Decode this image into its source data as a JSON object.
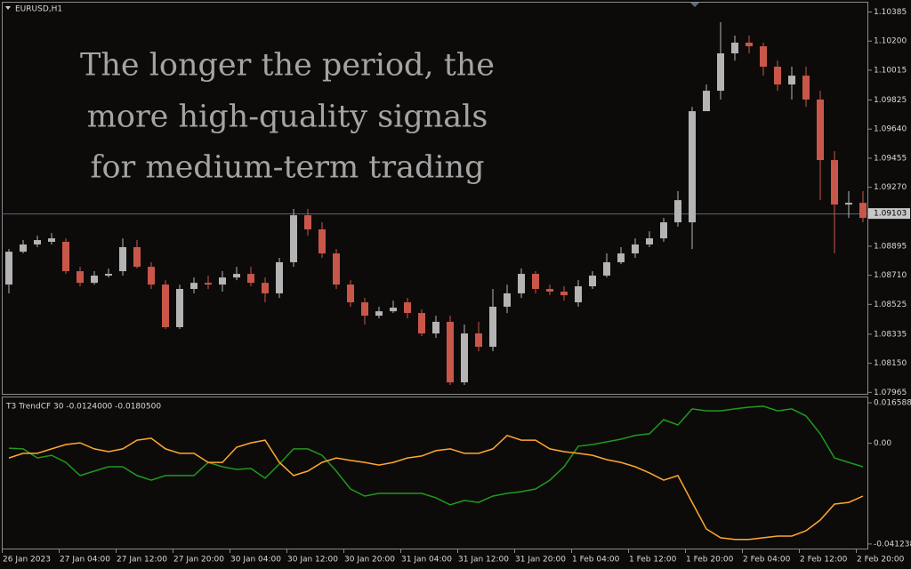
{
  "chart_data": [
    {
      "type": "candlestick",
      "title": "EURUSD,H1",
      "annotation": [
        "The longer the period, the",
        "more high-quality signals",
        "for medium-term trading"
      ],
      "categories": [
        "26 Jan 2023",
        null,
        null,
        null,
        "27 Jan 04:00",
        null,
        null,
        null,
        "27 Jan 12:00",
        null,
        null,
        null,
        "27 Jan 20:00",
        null,
        null,
        null,
        "30 Jan 04:00",
        null,
        null,
        null,
        "30 Jan 12:00",
        null,
        null,
        null,
        "30 Jan 20:00",
        null,
        null,
        null,
        "31 Jan 04:00",
        null,
        null,
        null,
        "31 Jan 12:00",
        null,
        null,
        null,
        "31 Jan 20:00",
        null,
        null,
        null,
        "1 Feb 04:00",
        null,
        null,
        null,
        "1 Feb 12:00",
        null,
        null,
        null,
        "1 Feb 20:00",
        null,
        null,
        null,
        "2 Feb 04:00",
        null,
        null,
        null,
        "2 Feb 12:00",
        null,
        null,
        null,
        "2 Feb 20:00"
      ],
      "open": [
        1.08651,
        1.0886,
        1.08906,
        1.08923,
        1.08923,
        1.08736,
        1.08662,
        1.08708,
        1.08736,
        1.08889,
        1.08764,
        1.08651,
        1.0838,
        1.08623,
        1.08662,
        1.08651,
        1.08696,
        1.08719,
        1.08662,
        1.08595,
        1.08793,
        1.09092,
        1.09002,
        1.08849,
        1.08651,
        1.08538,
        1.08453,
        1.08481,
        1.08538,
        1.0847,
        1.0834,
        1.08414,
        1.08029,
        1.0834,
        1.08255,
        1.0851,
        1.08595,
        1.08719,
        1.08623,
        1.08606,
        1.08538,
        1.0864,
        1.08708,
        1.08793,
        1.08849,
        1.08906,
        1.08945,
        1.09047,
        1.09047,
        1.09754,
        1.09884,
        1.10122,
        1.1019,
        1.10167,
        1.10037,
        1.09924,
        1.0998,
        1.09828,
        1.09443,
        1.0916,
        1.09171
      ],
      "high": [
        1.08877,
        1.08934,
        1.08962,
        1.08979,
        1.08945,
        1.08764,
        1.08736,
        1.08753,
        1.08945,
        1.08934,
        1.08793,
        1.08679,
        1.08651,
        1.08696,
        1.08708,
        1.08736,
        1.08764,
        1.08764,
        1.08696,
        1.08821,
        1.09132,
        1.09132,
        1.09047,
        1.08877,
        1.08679,
        1.08566,
        1.0851,
        1.08549,
        1.08566,
        1.08493,
        1.08453,
        1.08453,
        1.08397,
        1.08414,
        1.08623,
        1.08651,
        1.08753,
        1.08736,
        1.08651,
        1.0864,
        1.08679,
        1.08736,
        1.08849,
        1.08889,
        1.08945,
        1.0899,
        1.09075,
        1.09245,
        1.09782,
        1.09924,
        1.1032,
        1.10235,
        1.10235,
        1.1019,
        1.10076,
        1.10037,
        1.10037,
        1.09884,
        1.095,
        1.09245,
        1.09245
      ],
      "low": [
        1.08595,
        1.08849,
        1.08889,
        1.08906,
        1.08719,
        1.0864,
        1.08651,
        1.08696,
        1.08708,
        1.08753,
        1.08623,
        1.08368,
        1.08368,
        1.08595,
        1.08623,
        1.08606,
        1.08679,
        1.0864,
        1.08538,
        1.08566,
        1.08764,
        1.08962,
        1.08821,
        1.08623,
        1.0851,
        1.08397,
        1.08436,
        1.0847,
        1.08436,
        1.08323,
        1.08312,
        1.08012,
        1.08012,
        1.08227,
        1.08227,
        1.0847,
        1.08566,
        1.08595,
        1.08583,
        1.08549,
        1.0851,
        1.08623,
        1.08696,
        1.08781,
        1.08821,
        1.08889,
        1.08923,
        1.09019,
        1.08877,
        1.09754,
        1.09828,
        1.10076,
        1.10122,
        1.0998,
        1.09884,
        1.09828,
        1.09782,
        1.09188,
        1.08849,
        1.09075,
        1.09047
      ],
      "close": [
        1.0886,
        1.08906,
        1.08934,
        1.08945,
        1.08736,
        1.08662,
        1.08708,
        1.08719,
        1.08889,
        1.08764,
        1.08651,
        1.0838,
        1.08623,
        1.08662,
        1.08651,
        1.08696,
        1.08719,
        1.08662,
        1.08595,
        1.08793,
        1.09092,
        1.09002,
        1.08849,
        1.08651,
        1.08538,
        1.08453,
        1.08481,
        1.08504,
        1.0847,
        1.0834,
        1.08414,
        1.08029,
        1.0834,
        1.08255,
        1.0851,
        1.08595,
        1.08719,
        1.08623,
        1.08606,
        1.08583,
        1.0864,
        1.08708,
        1.08793,
        1.08849,
        1.08906,
        1.08945,
        1.09047,
        1.09188,
        1.09754,
        1.09884,
        1.10122,
        1.1019,
        1.10167,
        1.10037,
        1.09924,
        1.0998,
        1.09828,
        1.09443,
        1.0916,
        1.09171,
        1.09075
      ],
      "up_color": "#b4b4b4",
      "down_color": "#c8574a",
      "current_price": {
        "value": 1.09103,
        "label": "1.09103"
      },
      "ylim": [
        1.0795,
        1.1045
      ],
      "yticks": [
        {
          "value": 1.10385,
          "label": "1.10385"
        },
        {
          "value": 1.102,
          "label": "1.10200"
        },
        {
          "value": 1.10015,
          "label": "1.10015"
        },
        {
          "value": 1.09825,
          "label": "1.09825"
        },
        {
          "value": 1.0964,
          "label": "1.09640"
        },
        {
          "value": 1.09455,
          "label": "1.09455"
        },
        {
          "value": 1.0927,
          "label": "1.09270"
        },
        {
          "value": 1.08895,
          "label": "1.08895"
        },
        {
          "value": 1.0871,
          "label": "1.08710"
        },
        {
          "value": 1.08525,
          "label": "1.08525"
        },
        {
          "value": 1.08335,
          "label": "1.08335"
        },
        {
          "value": 1.0815,
          "label": "1.08150"
        },
        {
          "value": 1.07965,
          "label": "1.07965"
        }
      ]
    },
    {
      "type": "line",
      "title": "T3 TrendCF 30 -0.0124000 -0.0180500",
      "series": [
        {
          "color": "#1f9a1f",
          "values": [
            -0.002,
            -0.0023,
            -0.006,
            -0.0049,
            -0.0078,
            -0.0132,
            -0.0114,
            -0.0096,
            -0.0096,
            -0.0132,
            -0.0151,
            -0.0132,
            -0.0132,
            -0.0132,
            -0.0078,
            -0.0096,
            -0.0107,
            -0.0103,
            -0.0143,
            -0.0085,
            -0.0023,
            -0.0023,
            -0.0049,
            -0.0114,
            -0.0187,
            -0.0216,
            -0.0205,
            -0.0205,
            -0.0205,
            -0.0205,
            -0.0223,
            -0.0252,
            -0.0234,
            -0.0242,
            -0.0216,
            -0.0205,
            -0.0198,
            -0.0187,
            -0.0151,
            -0.0096,
            -0.0012,
            -0.0005,
            0.0006,
            0.0017,
            0.0032,
            0.0039,
            0.0097,
            0.0075,
            0.0141,
            0.0133,
            0.0133,
            0.0141,
            0.0148,
            0.0152,
            0.0133,
            0.0141,
            0.0112,
            0.0039,
            -0.006,
            -0.0078,
            -0.0096
          ]
        },
        {
          "color": "#ffa830",
          "values": [
            -0.006,
            -0.0041,
            -0.0041,
            -0.0023,
            -0.0005,
            0.0002,
            -0.0023,
            -0.0034,
            -0.0023,
            0.0013,
            0.0021,
            -0.0023,
            -0.0041,
            -0.0041,
            -0.0078,
            -0.0078,
            -0.0016,
            0.0002,
            0.0013,
            -0.0078,
            -0.0132,
            -0.0114,
            -0.0078,
            -0.006,
            -0.007,
            -0.0078,
            -0.0089,
            -0.0078,
            -0.006,
            -0.0052,
            -0.003,
            -0.0023,
            -0.0041,
            -0.0041,
            -0.0023,
            0.0032,
            0.0013,
            0.0013,
            -0.0023,
            -0.0034,
            -0.0041,
            -0.0049,
            -0.0067,
            -0.0078,
            -0.0096,
            -0.0121,
            -0.0151,
            -0.0132,
            -0.0242,
            -0.0351,
            -0.0387,
            -0.0394,
            -0.0394,
            -0.0387,
            -0.038,
            -0.038,
            -0.0358,
            -0.0314,
            -0.0249,
            -0.0242,
            -0.0216
          ]
        }
      ],
      "ylim": [
        -0.0431,
        0.0188
      ],
      "yticks": [
        0.0165885,
        {
          "value": 0,
          "label": "0.00"
        },
        -0.041238
      ]
    }
  ]
}
